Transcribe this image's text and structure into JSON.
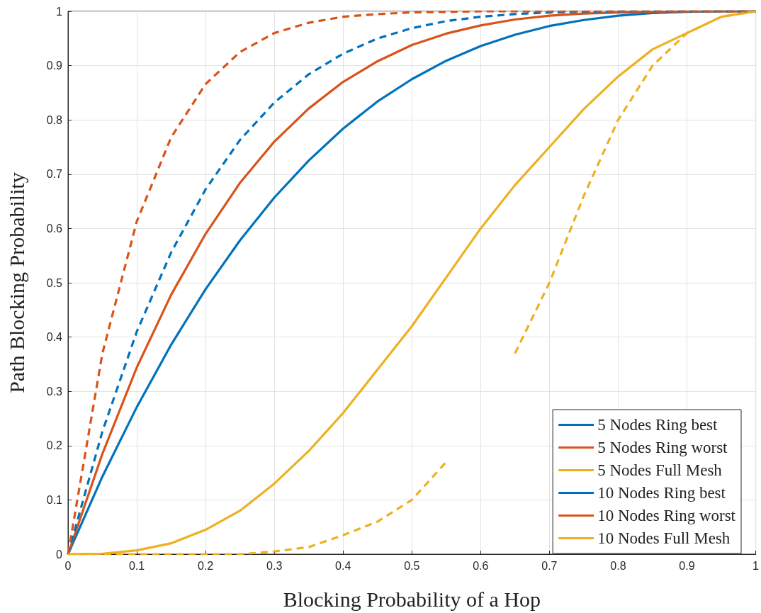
{
  "chart_data": {
    "type": "line",
    "xlabel": "Blocking Probability of a Hop",
    "ylabel": "Path Blocking Probability",
    "x": [
      0,
      0.05,
      0.1,
      0.15,
      0.2,
      0.25,
      0.3,
      0.35,
      0.4,
      0.45,
      0.5,
      0.55,
      0.6,
      0.65,
      0.7,
      0.75,
      0.8,
      0.85,
      0.9,
      0.95,
      1
    ],
    "xlim": [
      0,
      1
    ],
    "ylim": [
      0,
      1
    ],
    "xticks": [
      0,
      0.1,
      0.2,
      0.3,
      0.4,
      0.5,
      0.6,
      0.7,
      0.8,
      0.9,
      1
    ],
    "yticks": [
      0,
      0.1,
      0.2,
      0.3,
      0.4,
      0.5,
      0.6,
      0.7,
      0.8,
      0.9,
      1
    ],
    "grid": true,
    "legend": "bottom right",
    "marker": "none",
    "series": [
      {
        "name": "5 Nodes Ring best",
        "color": "#0072bd",
        "line_style": "solid",
        "values": [
          0,
          0.143,
          0.271,
          0.386,
          0.488,
          0.578,
          0.657,
          0.725,
          0.784,
          0.834,
          0.875,
          0.909,
          0.936,
          0.957,
          0.973,
          0.984,
          0.992,
          0.997,
          0.999,
          1,
          1
        ]
      },
      {
        "name": "5 Nodes Ring worst",
        "color": "#d95319",
        "line_style": "solid",
        "values": [
          0,
          0.185,
          0.344,
          0.478,
          0.59,
          0.684,
          0.76,
          0.821,
          0.87,
          0.908,
          0.938,
          0.959,
          0.974,
          0.985,
          0.992,
          0.996,
          0.998,
          0.999,
          1,
          1,
          1
        ]
      },
      {
        "name": "5 Nodes Full Mesh",
        "color": "#edb120",
        "line_style": "solid",
        "values": [
          0,
          0.001,
          0.007,
          0.02,
          0.045,
          0.08,
          0.13,
          0.19,
          0.26,
          0.34,
          0.42,
          0.51,
          0.6,
          0.68,
          0.75,
          0.82,
          0.88,
          0.93,
          0.96,
          0.99,
          1
        ]
      },
      {
        "name": "10 Nodes Ring best",
        "color": "#0072bd",
        "line_style": "dashed",
        "values": [
          0,
          0.226,
          0.41,
          0.556,
          0.672,
          0.763,
          0.832,
          0.884,
          0.922,
          0.95,
          0.969,
          0.982,
          0.99,
          0.995,
          0.998,
          0.999,
          1,
          1,
          1,
          1,
          1
        ]
      },
      {
        "name": "10 Nodes Ring worst",
        "color": "#d95319",
        "line_style": "dashed",
        "values": [
          0,
          0.37,
          0.613,
          0.768,
          0.866,
          0.925,
          0.96,
          0.979,
          0.99,
          0.995,
          0.998,
          0.999,
          1,
          1,
          1,
          1,
          1,
          1,
          1,
          1,
          1
        ]
      },
      {
        "name": "10 Nodes Full Mesh",
        "color": "#edb120",
        "line_style": "dashed",
        "values": [
          0,
          0,
          0,
          0,
          0,
          0,
          0.005,
          0.013,
          0.035,
          0.06,
          0.1,
          0.17,
          null,
          0.37,
          0.5,
          0.66,
          0.8,
          0.9,
          0.96,
          0.99,
          1
        ]
      }
    ]
  }
}
